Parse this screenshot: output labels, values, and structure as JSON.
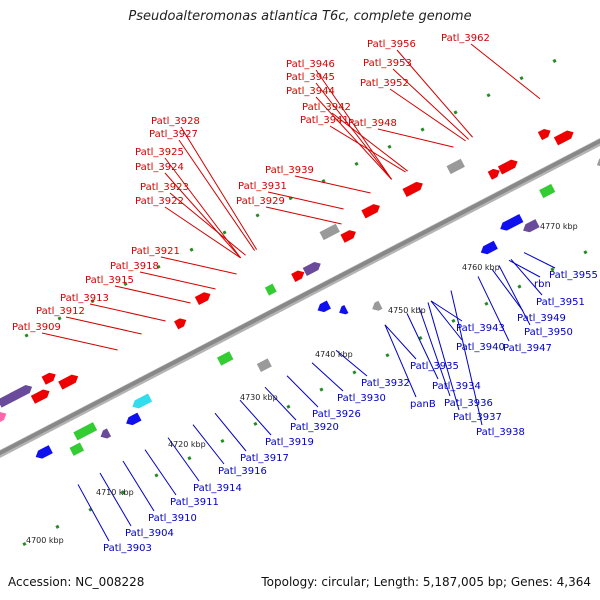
{
  "title": "Pseudoalteromonas atlantica T6c, complete genome",
  "footer": {
    "accession": "Accession: NC_008228",
    "summary": "Topology: circular; Length: 5,187,005 bp; Genes: 4,364"
  },
  "colors": {
    "upper_label": "#d40000",
    "lower_label": "#0000c8",
    "forward_gene": "#ee0000",
    "reverse_gene": "#1010ee",
    "backbone": "#888888",
    "tick": "#228b22"
  },
  "scale_labels": [
    "4700 kbp",
    "4710 kbp",
    "4720 kbp",
    "4730 kbp",
    "4740 kbp",
    "4750 kbp",
    "4760 kbp",
    "4770 kbp"
  ],
  "upper_labels": [
    "Patl_3909",
    "Patl_3912",
    "Patl_3913",
    "Patl_3915",
    "Patl_3918",
    "Patl_3921",
    "Patl_3922",
    "Patl_3923",
    "Patl_3924",
    "Patl_3925",
    "Patl_3927",
    "Patl_3928",
    "Patl_3929",
    "Patl_3931",
    "Patl_3939",
    "Patl_3941",
    "Patl_3942",
    "Patl_3944",
    "Patl_3945",
    "Patl_3946",
    "Patl_3948",
    "Patl_3952",
    "Patl_3953",
    "Patl_3956",
    "Patl_3962"
  ],
  "lower_labels": [
    "Patl_3903",
    "Patl_3904",
    "Patl_3910",
    "Patl_3911",
    "Patl_3914",
    "Patl_3916",
    "Patl_3917",
    "Patl_3919",
    "Patl_3920",
    "Patl_3926",
    "Patl_3930",
    "Patl_3932",
    "panB",
    "Patl_3934",
    "Patl_3935",
    "Patl_3936",
    "Patl_3937",
    "Patl_3938",
    "Patl_3940",
    "Patl_3943",
    "Patl_3947",
    "Patl_3950",
    "Patl_3949",
    "Patl_3951",
    "rbn",
    "Patl_3955"
  ]
}
